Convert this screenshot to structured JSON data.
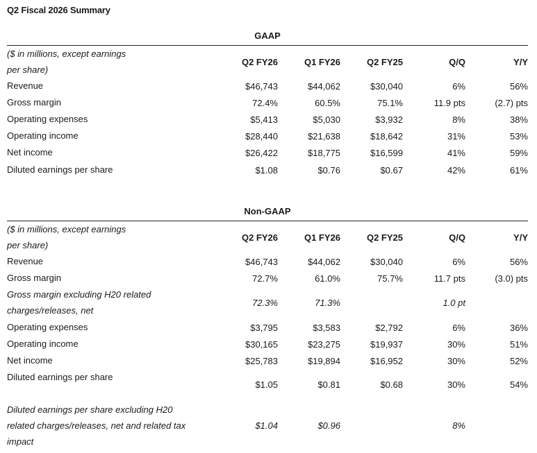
{
  "title": "Q2 Fiscal 2026 Summary",
  "columns": [
    "Q2 FY26",
    "Q1 FY26",
    "Q2 FY25",
    "Q/Q",
    "Y/Y"
  ],
  "units_label_line1": "($ in millions, except earnings",
  "units_label_line2": "per share)",
  "gaap": {
    "title": "GAAP",
    "rows": [
      {
        "label": "Revenue",
        "values": [
          "$46,743",
          "$44,062",
          "$30,040",
          "6%",
          "56%"
        ]
      },
      {
        "label": "Gross margin",
        "values": [
          "72.4%",
          "60.5%",
          "75.1%",
          "11.9 pts",
          "(2.7) pts"
        ]
      },
      {
        "label": "Operating expenses",
        "values": [
          "$5,413",
          "$5,030",
          "$3,932",
          "8%",
          "38%"
        ]
      },
      {
        "label": "Operating income",
        "values": [
          "$28,440",
          "$21,638",
          "$18,642",
          "31%",
          "53%"
        ]
      },
      {
        "label": "Net income",
        "values": [
          "$26,422",
          "$18,775",
          "$16,599",
          "41%",
          "59%"
        ]
      },
      {
        "label": "Diluted earnings per share",
        "values": [
          "$1.08",
          "$0.76",
          "$0.67",
          "42%",
          "61%"
        ]
      }
    ]
  },
  "non_gaap": {
    "title": "Non-GAAP",
    "rows": [
      {
        "label": "Revenue",
        "values": [
          "$46,743",
          "$44,062",
          "$30,040",
          "6%",
          "56%"
        ]
      },
      {
        "label": "Gross margin",
        "values": [
          "72.7%",
          "61.0%",
          "75.7%",
          "11.7 pts",
          "(3.0) pts"
        ]
      },
      {
        "label_line1": "Gross margin excluding H20 related",
        "label_line2": "charges/releases, net",
        "values": [
          "72.3%",
          "71.3%",
          "",
          "1.0 pt",
          ""
        ]
      },
      {
        "label": "Operating expenses",
        "values": [
          "$3,795",
          "$3,583",
          "$2,792",
          "6%",
          "36%"
        ]
      },
      {
        "label": "Operating income",
        "values": [
          "$30,165",
          "$23,275",
          "$19,937",
          "30%",
          "51%"
        ]
      },
      {
        "label": "Net income",
        "values": [
          "$25,783",
          "$19,894",
          "$16,952",
          "30%",
          "52%"
        ]
      },
      {
        "label": "Diluted earnings per share",
        "values": [
          "$1.05",
          "$0.81",
          "$0.68",
          "30%",
          "54%"
        ]
      },
      {
        "label_line1": "Diluted earnings per share excluding H20",
        "label_line2": "related charges/releases, net and related tax",
        "label_line3": "impact",
        "values": [
          "$1.04",
          "$0.96",
          "",
          "8%",
          ""
        ]
      }
    ]
  }
}
